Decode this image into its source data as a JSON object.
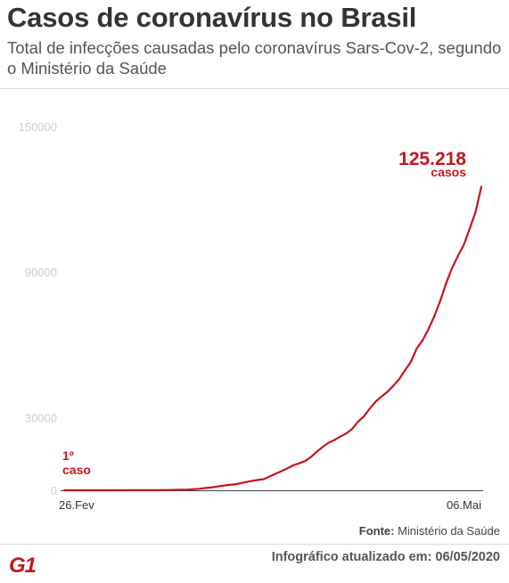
{
  "header": {
    "title": "Casos de coronavírus no Brasil",
    "subtitle": "Total de infecções causadas pelo coronavírus Sars-Cov-2, segundo o Ministério da Saúde"
  },
  "chart_data": {
    "type": "line",
    "title": "Casos de coronavírus no Brasil",
    "xlabel": "",
    "ylabel": "",
    "x_tick_labels": [
      "26.Fev",
      "06.Mai"
    ],
    "y_ticks": [
      0,
      30000,
      90000,
      150000
    ],
    "y_tick_labels": [
      "0",
      "30000",
      "90000",
      "150000"
    ],
    "ylim": [
      0,
      150000
    ],
    "grid": false,
    "legend": "none",
    "series": [
      {
        "values": [
          1,
          1,
          1,
          1,
          2,
          2,
          2,
          2,
          3,
          8,
          13,
          19,
          25,
          31,
          34,
          52,
          77,
          98,
          121,
          200,
          234,
          291,
          428,
          621,
          904,
          1128,
          1546,
          1891,
          2201,
          2433,
          2915,
          3417,
          3904,
          4256,
          4579,
          5717,
          6836,
          7910,
          9056,
          10278,
          11130,
          12056,
          13717,
          15927,
          17857,
          19638,
          20727,
          22169,
          23430,
          25262,
          28320,
          30425,
          33682,
          36599,
          38654,
          40581,
          43079,
          45757,
          49492,
          52995,
          58509,
          61888,
          66501,
          71886,
          78162,
          85380,
          91589,
          96559,
          101147,
          107780,
          114715,
          125218
        ],
        "color": "#c4161c"
      }
    ],
    "annotations": [
      {
        "label": "125.218",
        "sublabel": "casos",
        "x": "06.Mai",
        "y": 125218,
        "color": "#c4161c"
      },
      {
        "label": "1º",
        "sublabel": "caso",
        "x": "26.Fev",
        "y": 1,
        "color": "#c4161c"
      }
    ]
  },
  "footer": {
    "source_label": "Fonte:",
    "source_value": "Ministério da Saúde",
    "logo_text": "G1",
    "updated_label": "Infográfico atualizado em:",
    "updated_date": "06/05/2020"
  },
  "colors": {
    "line": "#c4161c",
    "logo": "#c4161c",
    "axis": "#444444",
    "tick_labels": "#cccccc"
  }
}
